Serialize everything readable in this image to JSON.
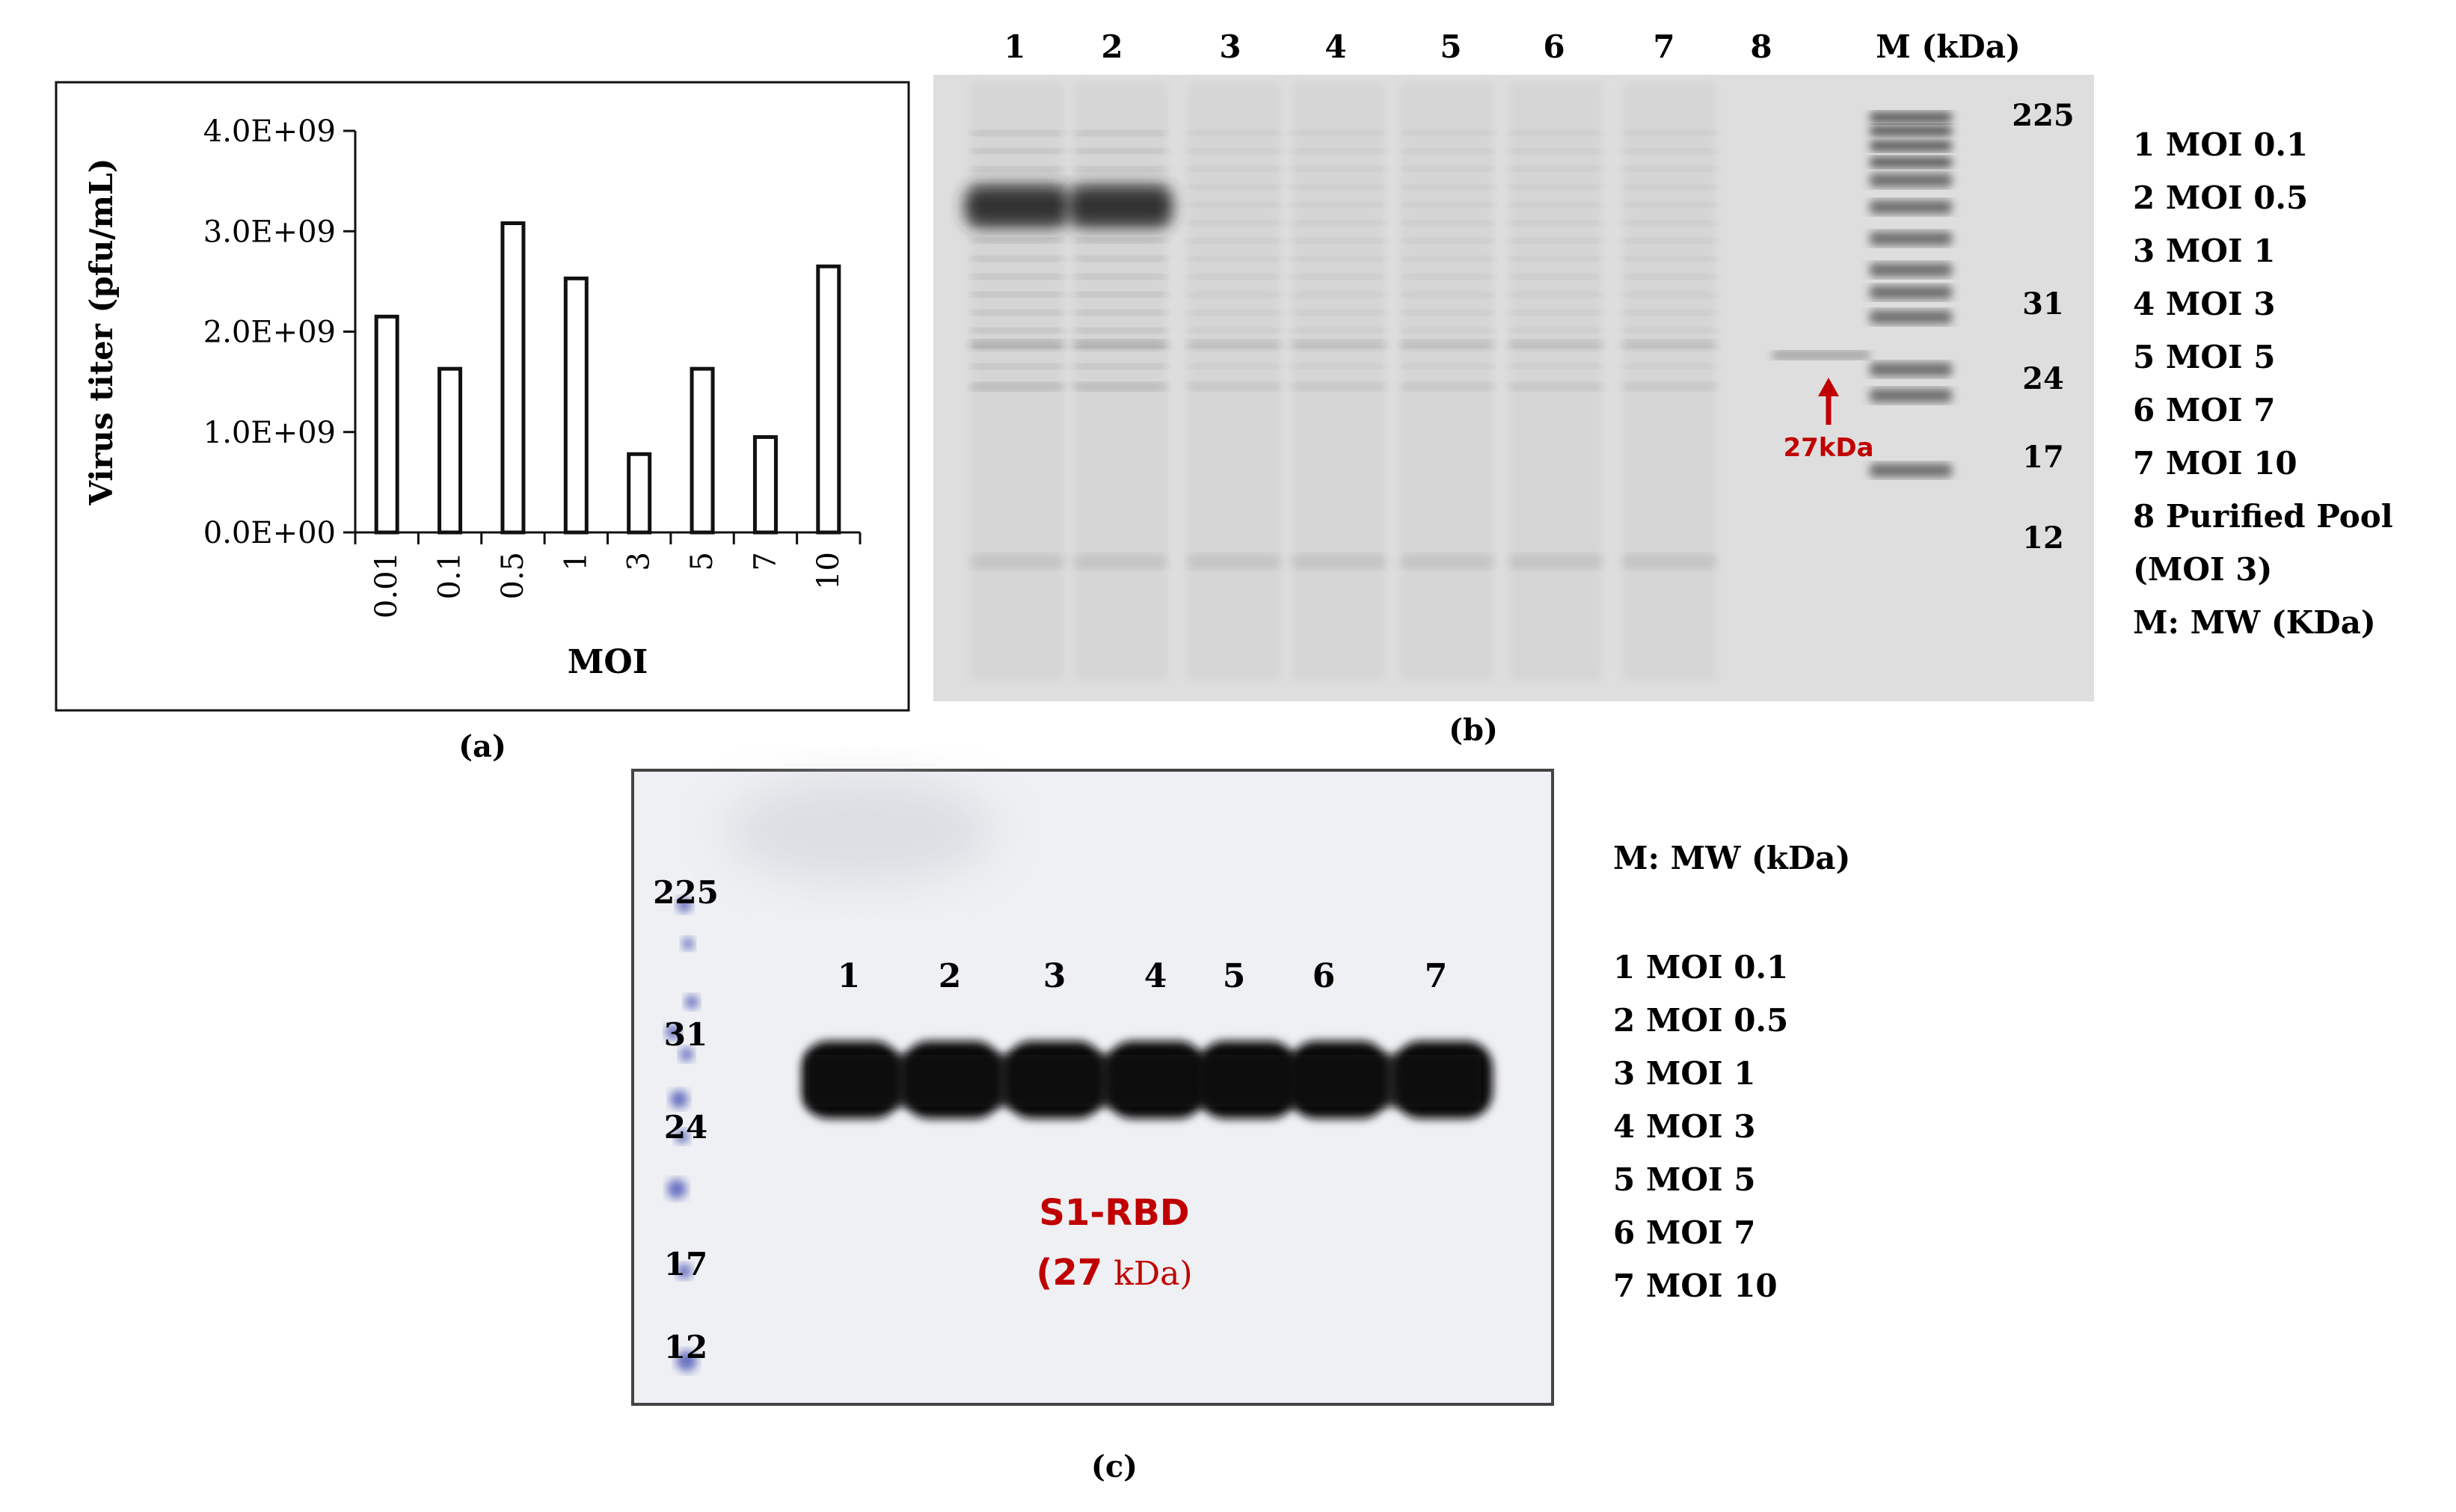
{
  "chart_data": [
    {
      "type": "bar",
      "panel_label": "(a)",
      "categories": [
        "0.01",
        "0.1",
        "0.5",
        "1",
        "3",
        "5",
        "7",
        "10"
      ],
      "values": [
        2150000000.0,
        1630000000.0,
        3080000000.0,
        2530000000.0,
        780000000.0,
        1630000000.0,
        950000000.0,
        2650000000.0
      ],
      "title": "",
      "xlabel": "MOI",
      "ylabel": "Virus titer (pfu/mL)",
      "ylim": [
        0,
        4000000000.0
      ],
      "yticks": [
        0,
        1000000000.0,
        2000000000.0,
        3000000000.0,
        4000000000.0
      ],
      "ytick_labels": [
        "0.0E+00",
        "1.0E+09",
        "2.0E+09",
        "3.0E+09",
        "4.0E+09"
      ],
      "grid": false,
      "legend": "none"
    }
  ],
  "gel_b": {
    "panel_label": "(b)",
    "lane_labels": [
      "1",
      "2",
      "3",
      "4",
      "5",
      "6",
      "7",
      "8",
      "M (kDa)"
    ],
    "marker_labels": [
      "225",
      "31",
      "24",
      "17",
      "12"
    ],
    "arrow_label": "27kDa",
    "arrow_color": "#c00000",
    "legend": [
      "1 MOI  0.1",
      "2 MOI 0.5",
      "3 MOI 1",
      "4 MOI 3",
      "5 MOI 5",
      "6 MOI 7",
      "7 MOI 10",
      "8 Purified Pool",
      "(MOI 3)",
      "M: MW (KDa)"
    ]
  },
  "blot_c": {
    "panel_label": "(c)",
    "lane_labels": [
      "1",
      "2",
      "3",
      "4",
      "5",
      "6",
      "7"
    ],
    "marker_labels": [
      "225",
      "31",
      "24",
      "17",
      "12"
    ],
    "band_label": "S1-RBD",
    "band_size_prefix": "(27",
    "band_size_unit": "kDa)",
    "label_color": "#c00000",
    "marker_color": "#3b44b0",
    "legend": [
      "M: MW (kDa)",
      "1  MOI  0.1",
      "2 MOI 0.5",
      "3 MOI 1",
      "4 MOI 3",
      "5 MOI 5",
      "6 MOI 7",
      "7 MOI 10"
    ]
  }
}
